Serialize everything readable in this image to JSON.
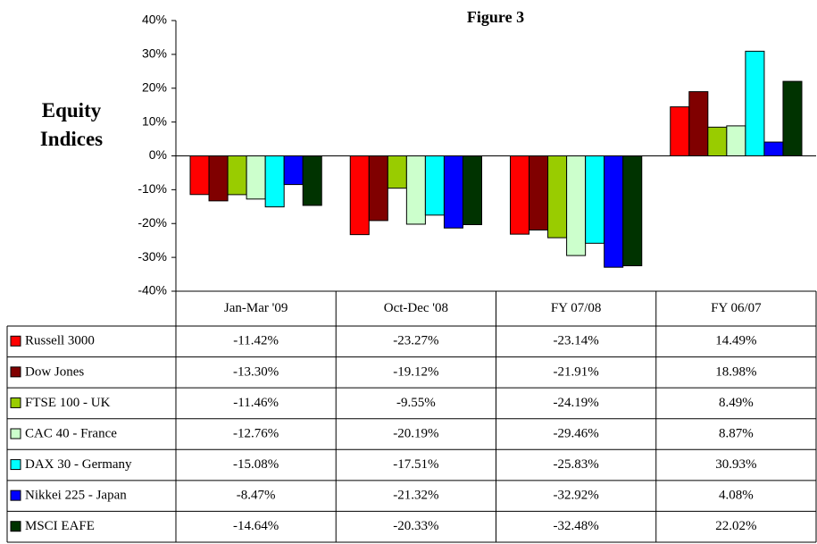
{
  "chart_data": {
    "type": "bar",
    "title": "Figure 3",
    "axis_label": "Equity Indices",
    "categories": [
      "Jan-Mar '09",
      "Oct-Dec '08",
      "FY 07/08",
      "FY 06/07"
    ],
    "ylim": [
      -40,
      40
    ],
    "yticks": [
      {
        "value": -40,
        "label": "-40%"
      },
      {
        "value": -30,
        "label": "-30%"
      },
      {
        "value": -20,
        "label": "-20%"
      },
      {
        "value": -10,
        "label": "-10%"
      },
      {
        "value": 0,
        "label": "0%"
      },
      {
        "value": 10,
        "label": "10%"
      },
      {
        "value": 20,
        "label": "20%"
      },
      {
        "value": 30,
        "label": "30%"
      },
      {
        "value": 40,
        "label": "40%"
      }
    ],
    "series": [
      {
        "name": "Russell 3000",
        "color": "#ff0000",
        "values": [
          -11.42,
          -23.27,
          -23.14,
          14.49
        ],
        "value_labels": [
          "-11.42%",
          "-23.27%",
          "-23.14%",
          "14.49%"
        ]
      },
      {
        "name": "Dow Jones",
        "color": "#800000",
        "values": [
          -13.3,
          -19.12,
          -21.91,
          18.98
        ],
        "value_labels": [
          "-13.30%",
          "-19.12%",
          "-21.91%",
          "18.98%"
        ]
      },
      {
        "name": "FTSE 100 - UK",
        "color": "#99cc00",
        "values": [
          -11.46,
          -9.55,
          -24.19,
          8.49
        ],
        "value_labels": [
          "-11.46%",
          "-9.55%",
          "-24.19%",
          "8.49%"
        ]
      },
      {
        "name": "CAC 40 - France",
        "color": "#ccffcc",
        "values": [
          -12.76,
          -20.19,
          -29.46,
          8.87
        ],
        "value_labels": [
          "-12.76%",
          "-20.19%",
          "-29.46%",
          "8.87%"
        ]
      },
      {
        "name": "DAX 30 - Germany",
        "color": "#00ffff",
        "values": [
          -15.08,
          -17.51,
          -25.83,
          30.93
        ],
        "value_labels": [
          "-15.08%",
          "-17.51%",
          "-25.83%",
          "30.93%"
        ]
      },
      {
        "name": "Nikkei 225 - Japan",
        "color": "#0000ff",
        "values": [
          -8.47,
          -21.32,
          -32.92,
          4.08
        ],
        "value_labels": [
          "-8.47%",
          "-21.32%",
          "-32.92%",
          "4.08%"
        ]
      },
      {
        "name": "MSCI EAFE",
        "color": "#003300",
        "values": [
          -14.64,
          -20.33,
          -32.48,
          22.02
        ],
        "value_labels": [
          "-14.64%",
          "-20.33%",
          "-32.48%",
          "22.02%"
        ]
      }
    ]
  }
}
